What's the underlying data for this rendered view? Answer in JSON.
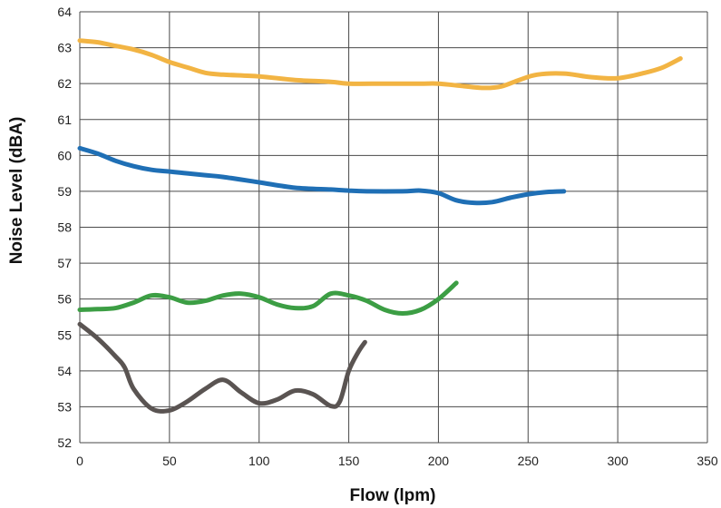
{
  "chart_data": {
    "type": "line",
    "title": "",
    "xlabel": "Flow (lpm)",
    "ylabel": "Noise Level (dBA)",
    "xlim": [
      0,
      350
    ],
    "ylim": [
      52,
      64
    ],
    "x_ticks": [
      0,
      50,
      100,
      150,
      200,
      250,
      300,
      350
    ],
    "y_ticks": [
      52,
      53,
      54,
      55,
      56,
      57,
      58,
      59,
      60,
      61,
      62,
      63,
      64
    ],
    "grid": true,
    "legend": "none",
    "series": [
      {
        "color": "#f2b443",
        "x": [
          0,
          10,
          20,
          30,
          40,
          50,
          60,
          70,
          80,
          100,
          120,
          140,
          150,
          170,
          190,
          200,
          210,
          225,
          235,
          245,
          255,
          270,
          285,
          300,
          315,
          325,
          335
        ],
        "y": [
          63.2,
          63.15,
          63.05,
          62.95,
          62.8,
          62.6,
          62.45,
          62.3,
          62.25,
          62.2,
          62.1,
          62.05,
          62.0,
          62.0,
          62.0,
          62.0,
          61.95,
          61.88,
          61.92,
          62.1,
          62.25,
          62.28,
          62.18,
          62.15,
          62.3,
          62.45,
          62.7
        ]
      },
      {
        "color": "#1f6fb5",
        "x": [
          0,
          10,
          20,
          30,
          40,
          50,
          60,
          70,
          80,
          100,
          120,
          140,
          150,
          160,
          180,
          190,
          200,
          210,
          220,
          230,
          240,
          250,
          260,
          270
        ],
        "y": [
          60.2,
          60.05,
          59.85,
          59.7,
          59.6,
          59.55,
          59.5,
          59.45,
          59.4,
          59.25,
          59.1,
          59.05,
          59.02,
          59.0,
          59.0,
          59.02,
          58.95,
          58.75,
          58.68,
          58.7,
          58.82,
          58.92,
          58.98,
          59.0
        ]
      },
      {
        "color": "#3c9e44",
        "x": [
          0,
          10,
          20,
          30,
          40,
          50,
          60,
          70,
          80,
          90,
          100,
          110,
          120,
          130,
          140,
          150,
          160,
          170,
          180,
          190,
          200,
          210
        ],
        "y": [
          55.7,
          55.72,
          55.75,
          55.9,
          56.1,
          56.05,
          55.9,
          55.95,
          56.1,
          56.15,
          56.05,
          55.85,
          55.75,
          55.8,
          56.15,
          56.1,
          55.95,
          55.7,
          55.6,
          55.7,
          56.0,
          56.45
        ]
      },
      {
        "color": "#5a5452",
        "x": [
          0,
          10,
          20,
          25,
          30,
          40,
          50,
          60,
          70,
          80,
          90,
          100,
          110,
          120,
          130,
          140,
          145,
          150,
          155,
          159
        ],
        "y": [
          55.3,
          54.9,
          54.4,
          54.1,
          53.5,
          52.95,
          52.9,
          53.15,
          53.5,
          53.75,
          53.4,
          53.1,
          53.2,
          53.45,
          53.35,
          53.02,
          53.15,
          54.0,
          54.5,
          54.8
        ]
      }
    ]
  }
}
